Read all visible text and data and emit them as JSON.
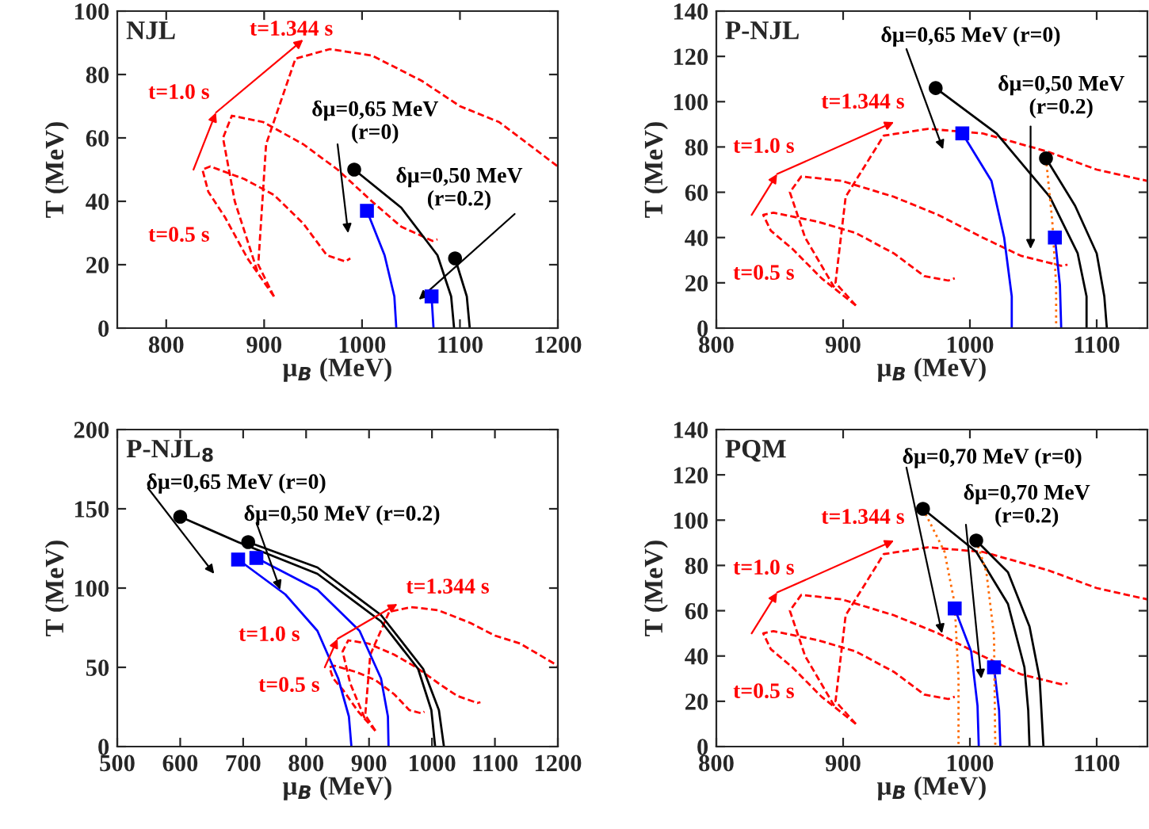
{
  "chart_data": [
    {
      "type": "line",
      "title": "NJL",
      "xlabel": "μ$_{B}$ (MeV)",
      "ylabel": "T (MeV)",
      "xlim": [
        750,
        1200
      ],
      "xticks": [
        800,
        900,
        1000,
        1100,
        1200
      ],
      "ylim": [
        0,
        100
      ],
      "yticks": [
        0,
        20,
        40,
        60,
        80,
        100
      ],
      "series": [
        {
          "type": "line",
          "color": "#ff0000",
          "line_style": "dashed",
          "x": [
            910,
            894,
            902,
            932,
            967,
            1010,
            1061,
            1100,
            1140,
            1170,
            1200
          ],
          "values": [
            10,
            20,
            58,
            85,
            88,
            86,
            78,
            70,
            65,
            58,
            51
          ]
        },
        {
          "type": "line",
          "color": "#ff0000",
          "line_style": "dashed",
          "x": [
            893,
            870,
            858,
            867,
            899,
            940,
            975,
            1010,
            1040,
            1072,
            1077
          ],
          "values": [
            18,
            40,
            60,
            67,
            65,
            58,
            50,
            40,
            32,
            27.5,
            28
          ]
        },
        {
          "type": "line",
          "color": "#ff0000",
          "line_style": "dashed",
          "x": [
            910,
            883,
            860,
            843,
            837,
            845,
            880,
            910,
            940,
            964,
            983,
            988
          ],
          "values": [
            10,
            22,
            35,
            43,
            50,
            51,
            47,
            42,
            33,
            23,
            21,
            22
          ]
        },
        {
          "type": "line",
          "color": "#000000",
          "line_style": "solid",
          "x": [
            992,
            1040,
            1077,
            1091,
            1094
          ],
          "values": [
            50,
            38,
            23,
            10,
            0
          ]
        },
        {
          "type": "line",
          "color": "#000000",
          "line_style": "solid",
          "x": [
            1095,
            1107,
            1110
          ],
          "values": [
            22,
            10,
            0
          ]
        },
        {
          "type": "line",
          "color": "#0000ff",
          "line_style": "solid",
          "x": [
            1005,
            1023,
            1033,
            1035
          ],
          "values": [
            37,
            23,
            10,
            0
          ]
        },
        {
          "type": "line",
          "color": "#0000ff",
          "line_style": "solid",
          "x": [
            1071,
            1072,
            1073
          ],
          "values": [
            10,
            5,
            0
          ]
        },
        {
          "type": "scatter",
          "marker": "circle",
          "color": "#000000",
          "x": [
            992,
            1095
          ],
          "values": [
            50,
            22
          ]
        },
        {
          "type": "scatter",
          "marker": "square",
          "color": "#0000ff",
          "x": [
            1005,
            1071
          ],
          "values": [
            37,
            10
          ]
        }
      ],
      "annotations": [
        "t=1.344 s",
        "t=1.0 s",
        "t=0.5 s",
        "δμ=0,65 MeV\n(r=0)",
        {
          "text": "δμ=0,50 MeV\n(r=0.2)",
          "x": 1058,
          "y": 9
        }
      ]
    },
    {
      "type": "line",
      "title": "P-NJL",
      "xlabel": "μ$_{B}$ (MeV)",
      "ylabel": "T (MeV)",
      "xlim": [
        800,
        1140
      ],
      "xticks": [
        800,
        900,
        1000,
        1100
      ],
      "ylim": [
        0,
        140
      ],
      "yticks": [
        0,
        20,
        40,
        60,
        80,
        100,
        120,
        140
      ],
      "series": [
        {
          "type": "line",
          "color": "#ff0000",
          "line_style": "dashed",
          "x": [
            910,
            894,
            902,
            932,
            967,
            1010,
            1061,
            1100,
            1140
          ],
          "values": [
            10,
            20,
            58,
            85,
            88,
            86,
            78,
            70,
            65
          ]
        },
        {
          "type": "line",
          "color": "#ff0000",
          "line_style": "dashed",
          "x": [
            893,
            870,
            858,
            867,
            899,
            940,
            975,
            1010,
            1040,
            1072,
            1077
          ],
          "values": [
            18,
            40,
            60,
            67,
            65,
            58,
            50,
            40,
            32,
            27.5,
            28
          ]
        },
        {
          "type": "line",
          "color": "#ff0000",
          "line_style": "dashed",
          "x": [
            910,
            883,
            860,
            843,
            837,
            845,
            880,
            910,
            940,
            964,
            983,
            988
          ],
          "values": [
            10,
            22,
            35,
            43,
            50,
            51,
            47,
            42,
            33,
            23,
            21,
            22
          ]
        },
        {
          "type": "line",
          "color": "#000000",
          "line_style": "solid",
          "x": [
            973,
            1021,
            1063,
            1085,
            1092,
            1092
          ],
          "values": [
            106,
            86,
            58,
            33,
            14,
            0
          ]
        },
        {
          "type": "line",
          "color": "#000000",
          "line_style": "solid",
          "x": [
            1060,
            1083,
            1100,
            1106,
            1108
          ],
          "values": [
            75,
            54,
            33,
            14,
            0
          ]
        },
        {
          "type": "line",
          "color": "#0000ff",
          "line_style": "solid",
          "x": [
            994,
            1017,
            1027,
            1033,
            1033
          ],
          "values": [
            86,
            65,
            40,
            14,
            0
          ]
        },
        {
          "type": "line",
          "color": "#0000ff",
          "line_style": "solid",
          "x": [
            1067,
            1071,
            1072
          ],
          "values": [
            40,
            19,
            0
          ]
        },
        {
          "type": "line",
          "color": "#ff6a00",
          "line_style": "dotted",
          "x": [
            1060,
            1065,
            1068,
            1068
          ],
          "values": [
            75,
            47,
            19,
            0
          ]
        },
        {
          "type": "scatter",
          "marker": "circle",
          "color": "#000000",
          "x": [
            973,
            1060
          ],
          "values": [
            106,
            75
          ]
        },
        {
          "type": "scatter",
          "marker": "square",
          "color": "#0000ff",
          "x": [
            994,
            1067
          ],
          "values": [
            86,
            40
          ]
        }
      ],
      "annotations": [
        "t=1.344 s",
        "t=1.0 s",
        "t=0.5 s",
        "δμ=0,65 MeV (r=0)",
        "δμ=0,50 MeV\n(r=0.2)"
      ]
    },
    {
      "type": "line",
      "title": "P-NJL$_{8}$",
      "xlabel": "μ$_{B}$ (MeV)",
      "ylabel": "T (MeV)",
      "xlim": [
        500,
        1200
      ],
      "xticks": [
        500,
        600,
        700,
        800,
        900,
        1000,
        1100,
        1200
      ],
      "ylim": [
        0,
        200
      ],
      "yticks": [
        0,
        50,
        100,
        150,
        200
      ],
      "series": [
        {
          "type": "line",
          "color": "#ff0000",
          "line_style": "dashed",
          "x": [
            910,
            894,
            902,
            932,
            967,
            1010,
            1061,
            1100,
            1140,
            1170,
            1200
          ],
          "values": [
            10,
            20,
            58,
            85,
            88,
            86,
            78,
            70,
            65,
            58,
            51
          ]
        },
        {
          "type": "line",
          "color": "#ff0000",
          "line_style": "dashed",
          "x": [
            893,
            870,
            858,
            867,
            899,
            940,
            975,
            1010,
            1040,
            1072,
            1077
          ],
          "values": [
            18,
            40,
            60,
            67,
            65,
            58,
            50,
            40,
            32,
            27.5,
            28
          ]
        },
        {
          "type": "line",
          "color": "#ff0000",
          "line_style": "dashed",
          "x": [
            910,
            883,
            860,
            843,
            837,
            845,
            880,
            910,
            940,
            964,
            983,
            988
          ],
          "values": [
            10,
            22,
            35,
            43,
            50,
            51,
            47,
            42,
            33,
            23,
            21,
            22
          ]
        },
        {
          "type": "line",
          "color": "#000000",
          "line_style": "solid",
          "x": [
            600,
            692,
            818,
            919,
            978,
            999,
            1005
          ],
          "values": [
            145,
            129,
            109,
            79,
            49,
            23,
            0
          ]
        },
        {
          "type": "line",
          "color": "#000000",
          "line_style": "solid",
          "x": [
            708,
            818,
            919,
            986,
            1011,
            1019
          ],
          "values": [
            129,
            113,
            83,
            49,
            23,
            0
          ]
        },
        {
          "type": "line",
          "color": "#0000ff",
          "line_style": "solid",
          "x": [
            692,
            767,
            818,
            851,
            868,
            872
          ],
          "values": [
            118,
            96,
            73,
            43,
            19,
            0
          ]
        },
        {
          "type": "line",
          "color": "#0000ff",
          "line_style": "solid",
          "x": [
            721,
            818,
            885,
            919,
            930,
            931
          ],
          "values": [
            119,
            99,
            73,
            43,
            19,
            0
          ]
        },
        {
          "type": "scatter",
          "marker": "circle",
          "color": "#000000",
          "x": [
            600,
            708
          ],
          "values": [
            145,
            129
          ]
        },
        {
          "type": "scatter",
          "marker": "square",
          "color": "#0000ff",
          "x": [
            692,
            721
          ],
          "values": [
            118,
            119
          ]
        }
      ],
      "annotations": [
        "t=1.344 s",
        "t=1.0 s",
        "t=0.5 s",
        "δμ=0,65 MeV (r=0)",
        {
          "text": "δμ=0,50 MeV (r=0.2)",
          "x": 759,
          "y": 99
        }
      ]
    },
    {
      "type": "line",
      "title": "PQM",
      "xlabel": "μ$_{B}$ (MeV)",
      "ylabel": "T (MeV)",
      "xlim": [
        800,
        1140
      ],
      "xticks": [
        800,
        900,
        1000,
        1100
      ],
      "ylim": [
        0,
        140
      ],
      "yticks": [
        0,
        20,
        40,
        60,
        80,
        100,
        120,
        140
      ],
      "series": [
        {
          "type": "line",
          "color": "#ff0000",
          "line_style": "dashed",
          "x": [
            910,
            894,
            902,
            932,
            967,
            1010,
            1061,
            1100,
            1140
          ],
          "values": [
            10,
            20,
            58,
            85,
            88,
            86,
            78,
            70,
            65
          ]
        },
        {
          "type": "line",
          "color": "#ff0000",
          "line_style": "dashed",
          "x": [
            893,
            870,
            858,
            867,
            899,
            940,
            975,
            1010,
            1040,
            1072,
            1077
          ],
          "values": [
            18,
            40,
            60,
            67,
            65,
            58,
            50,
            40,
            32,
            27.5,
            28
          ]
        },
        {
          "type": "line",
          "color": "#ff0000",
          "line_style": "dashed",
          "x": [
            910,
            883,
            860,
            843,
            837,
            845,
            880,
            910,
            940,
            964,
            983,
            988
          ],
          "values": [
            10,
            22,
            35,
            43,
            50,
            51,
            47,
            42,
            33,
            23,
            21,
            22
          ]
        },
        {
          "type": "line",
          "color": "#000000",
          "line_style": "solid",
          "x": [
            963,
            1005,
            1030,
            1043,
            1046,
            1047
          ],
          "values": [
            105,
            86,
            63,
            35,
            16,
            0
          ]
        },
        {
          "type": "line",
          "color": "#000000",
          "line_style": "solid",
          "x": [
            1005,
            1030,
            1047,
            1055,
            1058
          ],
          "values": [
            91,
            77,
            53,
            30,
            0
          ]
        },
        {
          "type": "line",
          "color": "#0000ff",
          "line_style": "solid",
          "x": [
            988,
            1001,
            1006,
            1007
          ],
          "values": [
            61,
            42,
            18,
            0
          ]
        },
        {
          "type": "line",
          "color": "#0000ff",
          "line_style": "solid",
          "x": [
            1019,
            1023,
            1024
          ],
          "values": [
            35,
            16,
            0
          ]
        },
        {
          "type": "line",
          "color": "#ff6a00",
          "line_style": "dotted",
          "x": [
            963,
            980,
            988,
            991,
            991
          ],
          "values": [
            105,
            86,
            63,
            30,
            0
          ]
        },
        {
          "type": "line",
          "color": "#ff6a00",
          "line_style": "dotted",
          "x": [
            1005,
            1013,
            1019,
            1020
          ],
          "values": [
            91,
            77,
            49,
            0
          ]
        },
        {
          "type": "scatter",
          "marker": "circle",
          "color": "#000000",
          "x": [
            963,
            1005
          ],
          "values": [
            105,
            91
          ]
        },
        {
          "type": "scatter",
          "marker": "square",
          "color": "#0000ff",
          "x": [
            988,
            1019
          ],
          "values": [
            61,
            35
          ]
        }
      ],
      "annotations": [
        "t=1.344 s",
        "t=1.0 s",
        "t=0.5 s",
        {
          "text": "δμ=0,70 MeV (r=0)",
          "x": 978,
          "y": 50
        },
        {
          "text": "δμ=0,70 MeV\n(r=0.2)",
          "x": 1009,
          "y": 30
        }
      ]
    }
  ]
}
